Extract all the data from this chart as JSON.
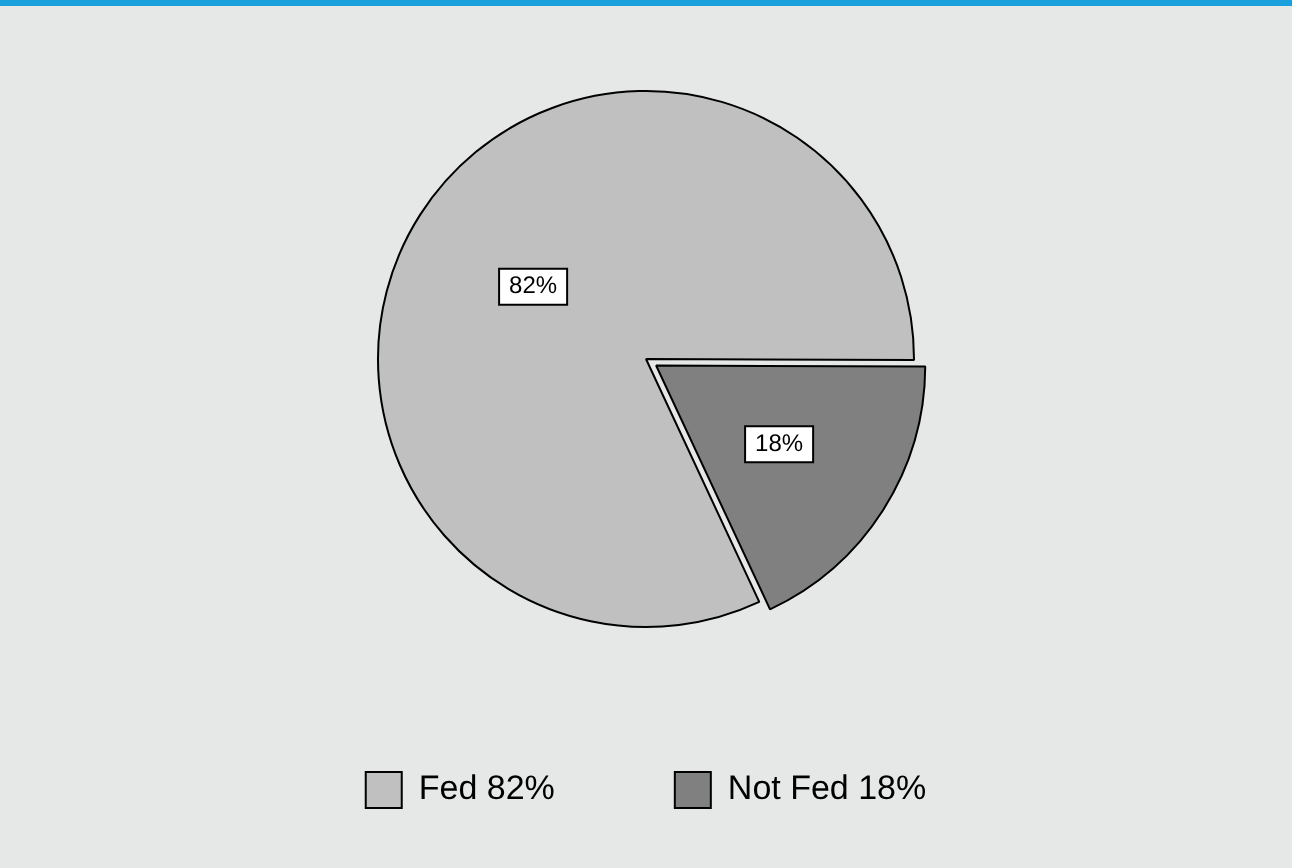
{
  "chart_data": {
    "type": "pie",
    "categories": [
      "Fed 82%",
      "Not Fed 18%"
    ],
    "values": [
      82,
      18
    ],
    "colors": [
      "#c0c0c0",
      "#808080"
    ],
    "value_labels": [
      "82%",
      "18%"
    ],
    "legend": "bottom"
  }
}
